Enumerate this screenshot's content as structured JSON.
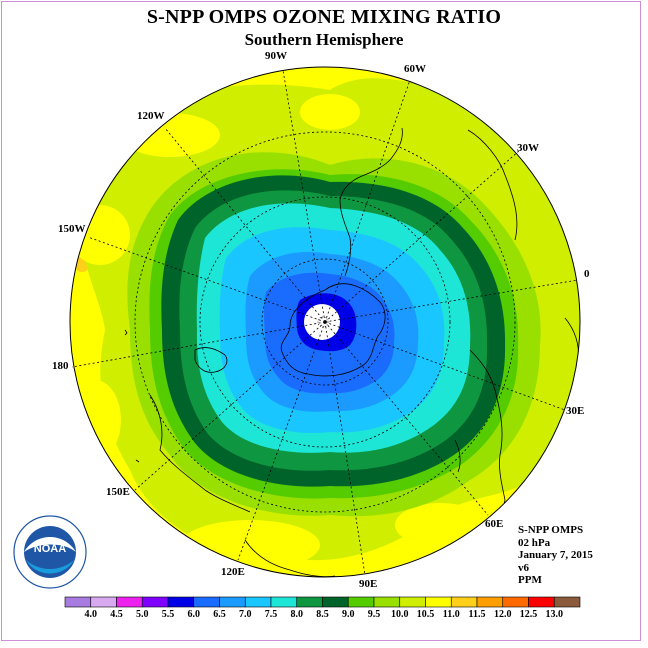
{
  "title": "S-NPP OMPS OZONE MIXING RATIO",
  "subtitle": "Southern Hemisphere",
  "meridian_labels": {
    "w90": "90W",
    "w60": "60W",
    "w120": "120W",
    "w30": "30W",
    "w150": "150W",
    "m0": "0",
    "m180": "180",
    "e30": "30E",
    "e150": "150E",
    "e60": "60E",
    "e120": "120E",
    "e90": "90E"
  },
  "info": {
    "instrument": "S-NPP OMPS",
    "level": "02 hPa",
    "date": "January 7, 2015",
    "version": "v6",
    "units": "PPM"
  },
  "logo_text": "NOAA",
  "logo_ring_text": "NATIONAL OCEANIC AND ATMOSPHERIC ADMINISTRATION U.S. DEPARTMENT OF COMMERCE",
  "colorbar": {
    "labels": [
      "4.0",
      "4.5",
      "5.0",
      "5.5",
      "6.0",
      "6.5",
      "7.0",
      "7.5",
      "8.0",
      "8.5",
      "9.0",
      "9.5",
      "10.0",
      "10.5",
      "11.0",
      "11.5",
      "12.0",
      "12.5",
      "13.0"
    ],
    "colors": [
      "#a77be0",
      "#d8a8f0",
      "#ee22ee",
      "#7f00ff",
      "#0000e8",
      "#1a6cff",
      "#1b9bff",
      "#19c6ff",
      "#1ee6d6",
      "#0f9640",
      "#00642a",
      "#55cc00",
      "#99e000",
      "#cfee00",
      "#ffff00",
      "#ffcf1a",
      "#ff9e00",
      "#ff6a00",
      "#ff0000",
      "#8a5a3b"
    ]
  },
  "map_fill": {
    "outer": "#ffff00",
    "yellow_green": "#cfee00",
    "light_green": "#99e000",
    "green": "#55cc00",
    "dark_green": "#00642a",
    "mid_green": "#0f9640",
    "aqua": "#1ee6d6",
    "cyan": "#19c6ff",
    "light_blue": "#1b9bff",
    "blue": "#1a6cff",
    "deep_blue": "#0000e8",
    "orange": "#ffcf1a"
  }
}
